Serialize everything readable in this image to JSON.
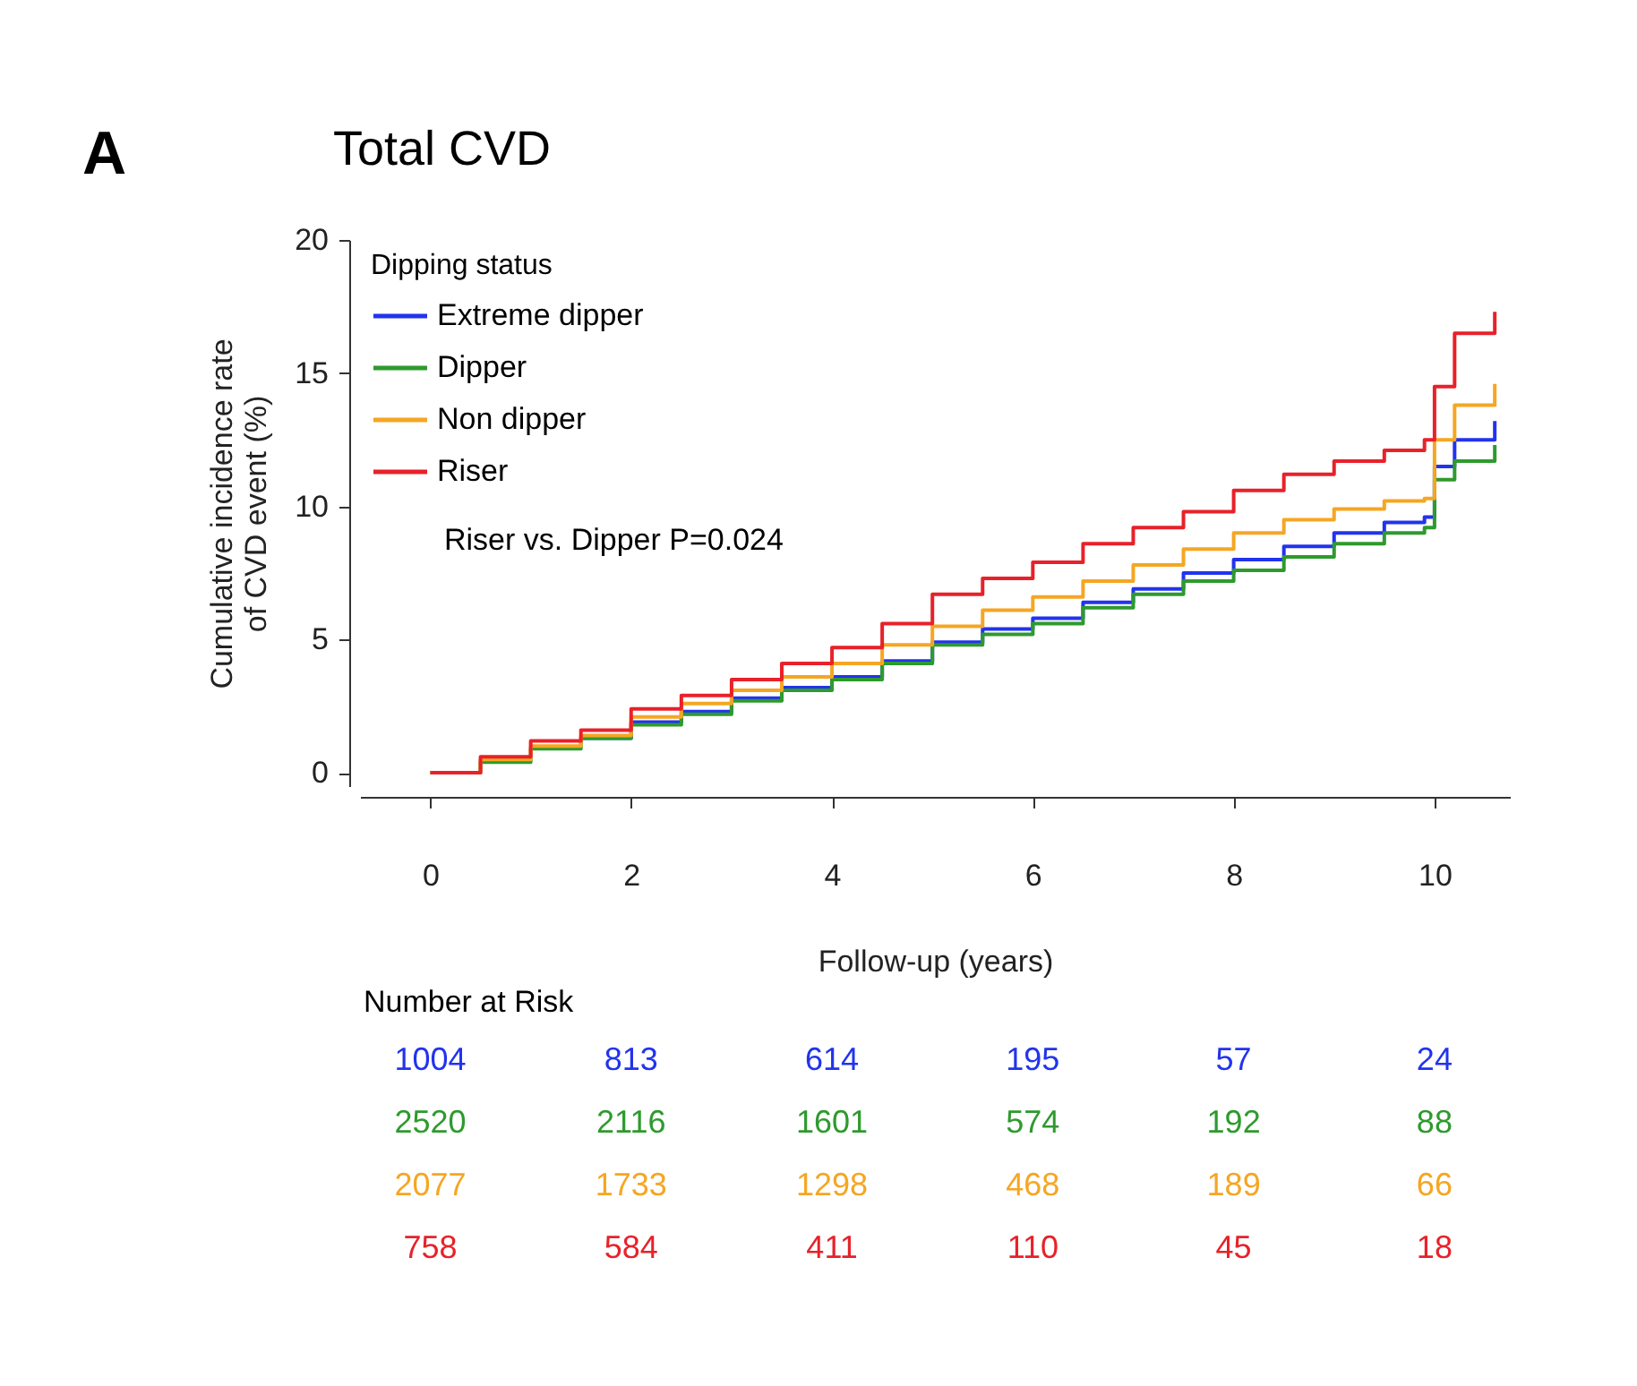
{
  "chart_data": {
    "type": "step",
    "title": "Total CVD",
    "xlabel": "Follow-up (years)",
    "ylabel": "Cumulative incidence rate\nof CVD event (%)",
    "legend_title": "Dipping status",
    "x": [
      0,
      0.5,
      1,
      1.5,
      2,
      2.5,
      3,
      3.5,
      4,
      4.5,
      5,
      5.5,
      6,
      6.5,
      7,
      7.5,
      8,
      8.5,
      9,
      9.5,
      9.9,
      10,
      10.2,
      10.6
    ],
    "series": [
      {
        "name": "Extreme dipper",
        "color": "#2233ee",
        "values": [
          null,
          null,
          null,
          1.3,
          1.9,
          2.3,
          2.8,
          3.2,
          3.6,
          4.2,
          4.9,
          5.4,
          5.8,
          6.4,
          6.9,
          7.5,
          8.0,
          8.5,
          9.0,
          9.4,
          9.6,
          11.5,
          12.5,
          13.2
        ]
      },
      {
        "name": "Dipper",
        "color": "#2e9a2e",
        "values": [
          0,
          0.4,
          0.9,
          1.3,
          1.8,
          2.2,
          2.7,
          3.1,
          3.5,
          4.1,
          4.8,
          5.2,
          5.6,
          6.2,
          6.7,
          7.2,
          7.6,
          8.1,
          8.6,
          9.0,
          9.2,
          11.0,
          11.7,
          12.3
        ]
      },
      {
        "name": "Non dipper",
        "color": "#f5a623",
        "values": [
          0,
          0.5,
          1.0,
          1.4,
          2.1,
          2.6,
          3.1,
          3.6,
          4.1,
          4.8,
          5.5,
          6.1,
          6.6,
          7.2,
          7.8,
          8.4,
          9.0,
          9.5,
          9.9,
          10.2,
          10.3,
          12.5,
          13.8,
          14.6
        ]
      },
      {
        "name": "Riser",
        "color": "#e8212a",
        "values": [
          0,
          0.6,
          1.2,
          1.6,
          2.4,
          2.9,
          3.5,
          4.1,
          4.7,
          5.6,
          6.7,
          7.3,
          7.9,
          8.6,
          9.2,
          9.8,
          10.6,
          11.2,
          11.7,
          12.1,
          12.5,
          14.5,
          16.5,
          17.3
        ]
      }
    ],
    "xlim": [
      -0.7,
      10.75
    ],
    "xticks": [
      0,
      2,
      4,
      6,
      8,
      10
    ],
    "ylim": [
      -0.5,
      20
    ],
    "yticks": [
      0,
      5,
      10,
      15,
      20
    ],
    "grid": false,
    "legend": "top left",
    "line_style": "solid",
    "annotations": [
      "A",
      "Riser vs. Dipper P=0.024",
      "Number at Risk",
      "1004",
      "813",
      "614",
      "195",
      "57",
      "24",
      "2520",
      "2116",
      "1601",
      "574",
      "192",
      "88",
      "2077",
      "1733",
      "1298",
      "468",
      "189",
      "66",
      "758",
      "584",
      "411",
      "110",
      "45",
      "18"
    ]
  }
}
